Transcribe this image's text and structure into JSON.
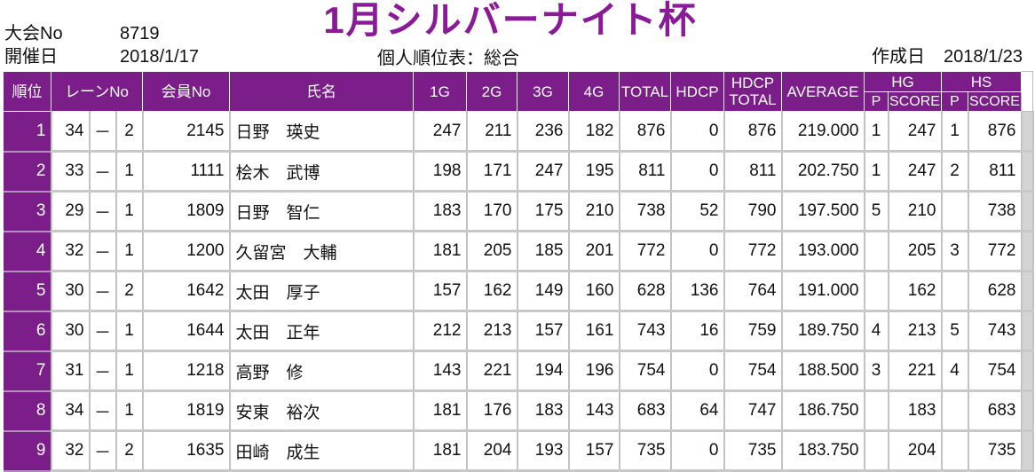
{
  "header": {
    "title": "1月シルバーナイト杯",
    "tournament_no_label": "大会No",
    "tournament_no": "8719",
    "date_label": "開催日",
    "date": "2018/1/17",
    "report_title": "個人順位表：総合",
    "created_label": "作成日",
    "created_date": "2018/1/23"
  },
  "columns": {
    "rank": "順位",
    "lane": "レーンNo",
    "member_no": "会員No",
    "name": "氏名",
    "g1": "1G",
    "g2": "2G",
    "g3": "3G",
    "g4": "4G",
    "total": "TOTAL",
    "hdcp": "HDCP",
    "hdcp_total_1": "HDCP",
    "hdcp_total_2": "TOTAL",
    "average": "AVERAGE",
    "hg": "HG",
    "hs": "HS",
    "hg_p": "P",
    "hg_score": "SCORE",
    "hs_p": "P",
    "hs_score": "SCORE"
  },
  "lane_separator": "－",
  "rows": [
    {
      "rank": "1",
      "lane_a": "34",
      "lane_b": "2",
      "member_no": "2145",
      "name": "日野　瑛史",
      "g1": "247",
      "g2": "211",
      "g3": "236",
      "g4": "182",
      "total": "876",
      "hdcp": "0",
      "hdcp_total": "876",
      "average": "219.000",
      "hg_p": "1",
      "hg_score": "247",
      "hs_p": "1",
      "hs_score": "876"
    },
    {
      "rank": "2",
      "lane_a": "33",
      "lane_b": "1",
      "member_no": "1111",
      "name": "桧木　武博",
      "g1": "198",
      "g2": "171",
      "g3": "247",
      "g4": "195",
      "total": "811",
      "hdcp": "0",
      "hdcp_total": "811",
      "average": "202.750",
      "hg_p": "1",
      "hg_score": "247",
      "hs_p": "2",
      "hs_score": "811"
    },
    {
      "rank": "3",
      "lane_a": "29",
      "lane_b": "1",
      "member_no": "1809",
      "name": "日野　智仁",
      "g1": "183",
      "g2": "170",
      "g3": "175",
      "g4": "210",
      "total": "738",
      "hdcp": "52",
      "hdcp_total": "790",
      "average": "197.500",
      "hg_p": "5",
      "hg_score": "210",
      "hs_p": "",
      "hs_score": "738"
    },
    {
      "rank": "4",
      "lane_a": "32",
      "lane_b": "1",
      "member_no": "1200",
      "name": "久留宮　大輔",
      "g1": "181",
      "g2": "205",
      "g3": "185",
      "g4": "201",
      "total": "772",
      "hdcp": "0",
      "hdcp_total": "772",
      "average": "193.000",
      "hg_p": "",
      "hg_score": "205",
      "hs_p": "3",
      "hs_score": "772"
    },
    {
      "rank": "5",
      "lane_a": "30",
      "lane_b": "2",
      "member_no": "1642",
      "name": "太田　厚子",
      "g1": "157",
      "g2": "162",
      "g3": "149",
      "g4": "160",
      "total": "628",
      "hdcp": "136",
      "hdcp_total": "764",
      "average": "191.000",
      "hg_p": "",
      "hg_score": "162",
      "hs_p": "",
      "hs_score": "628"
    },
    {
      "rank": "6",
      "lane_a": "30",
      "lane_b": "1",
      "member_no": "1644",
      "name": "太田　正年",
      "g1": "212",
      "g2": "213",
      "g3": "157",
      "g4": "161",
      "total": "743",
      "hdcp": "16",
      "hdcp_total": "759",
      "average": "189.750",
      "hg_p": "4",
      "hg_score": "213",
      "hs_p": "5",
      "hs_score": "743"
    },
    {
      "rank": "7",
      "lane_a": "31",
      "lane_b": "1",
      "member_no": "1218",
      "name": "高野　修",
      "g1": "143",
      "g2": "221",
      "g3": "194",
      "g4": "196",
      "total": "754",
      "hdcp": "0",
      "hdcp_total": "754",
      "average": "188.500",
      "hg_p": "3",
      "hg_score": "221",
      "hs_p": "4",
      "hs_score": "754"
    },
    {
      "rank": "8",
      "lane_a": "34",
      "lane_b": "1",
      "member_no": "1819",
      "name": "安東　裕次",
      "g1": "181",
      "g2": "176",
      "g3": "183",
      "g4": "143",
      "total": "683",
      "hdcp": "64",
      "hdcp_total": "747",
      "average": "186.750",
      "hg_p": "",
      "hg_score": "183",
      "hs_p": "",
      "hs_score": "683"
    },
    {
      "rank": "9",
      "lane_a": "32",
      "lane_b": "2",
      "member_no": "1635",
      "name": "田崎　成生",
      "g1": "181",
      "g2": "204",
      "g3": "193",
      "g4": "157",
      "total": "735",
      "hdcp": "0",
      "hdcp_total": "735",
      "average": "183.750",
      "hg_p": "",
      "hg_score": "204",
      "hs_p": "",
      "hs_score": "735"
    }
  ],
  "colors": {
    "header_purple": "#7b1e89",
    "title_purple": "#8a1a98"
  }
}
